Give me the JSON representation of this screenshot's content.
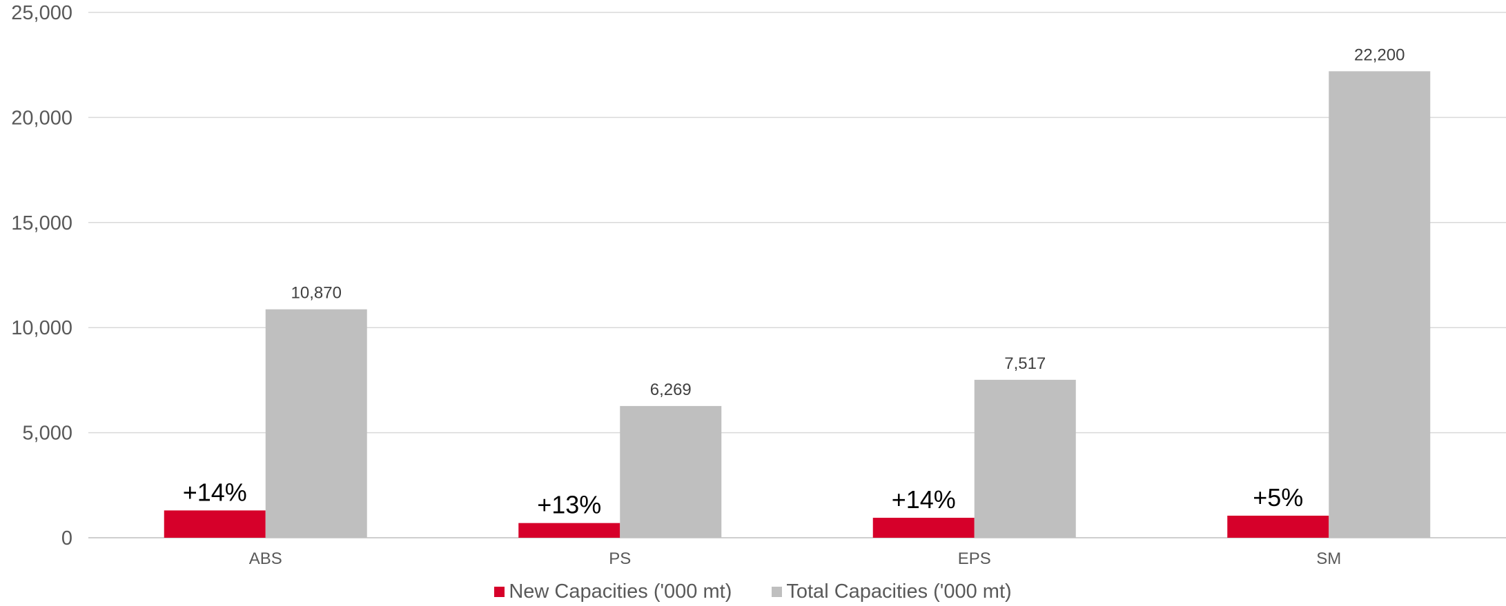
{
  "chart_data": {
    "type": "bar",
    "categories": [
      "ABS",
      "PS",
      "EPS",
      "SM"
    ],
    "series": [
      {
        "name": "New Capacities ('000 mt)",
        "values": [
          1300,
          700,
          950,
          1050
        ],
        "color": "#d6002a",
        "labels": [
          "+14%",
          "+13%",
          "+14%",
          "+5%"
        ]
      },
      {
        "name": "Total Capacities ('000 mt)",
        "values": [
          10870,
          6269,
          7517,
          22200
        ],
        "color": "#bfbfbf",
        "labels": [
          "10,870",
          "6,269",
          "7,517",
          "22,200"
        ]
      }
    ],
    "yticks": [
      "0",
      "5,000",
      "10,000",
      "15,000",
      "20,000",
      "25,000"
    ],
    "ylim": [
      0,
      25000
    ],
    "grid": true,
    "legend": "bottom"
  }
}
